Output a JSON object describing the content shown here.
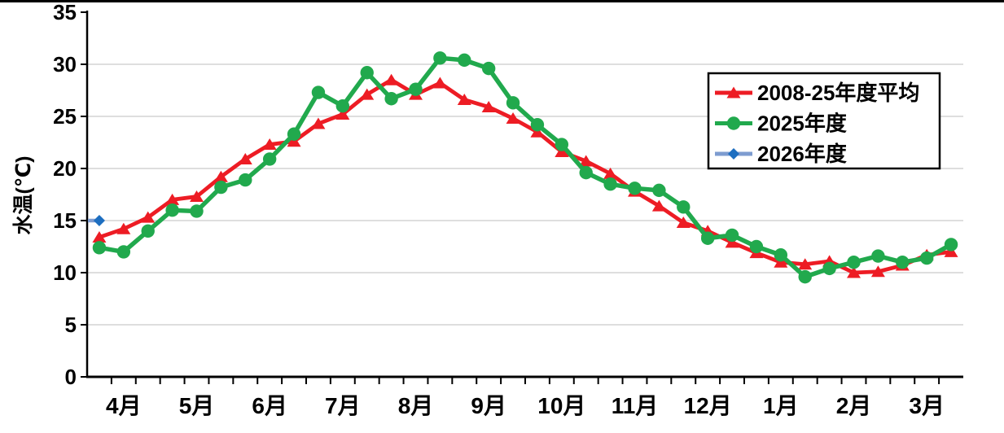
{
  "chart_data": {
    "type": "line",
    "title": "",
    "ylabel": "水温(℃)",
    "ylim": [
      0,
      35
    ],
    "yticks": [
      0,
      5,
      10,
      15,
      20,
      25,
      30,
      35
    ],
    "grid": "horizontal",
    "grid_color": "#d3d3d3",
    "axis_color": "#000000",
    "background_color": "#ffffff",
    "categories_months": [
      "4月",
      "5月",
      "6月",
      "7月",
      "8月",
      "9月",
      "10月",
      "11月",
      "12月",
      "1月",
      "2月",
      "3月"
    ],
    "points_per_month": 3,
    "x_structure": "36 points = 12 months x 3 ten-day periods; x tick marks at each period boundary",
    "legend_position": "upper right",
    "legend_border_color": "#000000",
    "series": [
      {
        "name": "2008-25年度平均",
        "color": "#ed1c24",
        "marker": "triangle",
        "values": [
          13.4,
          14.2,
          15.3,
          17.0,
          17.3,
          19.2,
          20.9,
          22.3,
          22.6,
          24.3,
          25.2,
          27.1,
          28.5,
          27.1,
          28.2,
          26.6,
          25.9,
          24.8,
          23.5,
          21.6,
          20.7,
          19.5,
          17.8,
          16.4,
          14.8,
          14.0,
          12.9,
          11.9,
          11.0,
          10.8,
          11.1,
          10.0,
          10.1,
          10.7,
          11.7,
          12.0
        ]
      },
      {
        "name": "2025年度",
        "color": "#21a94d",
        "marker": "circle",
        "values": [
          12.4,
          12.0,
          14.0,
          16.0,
          15.9,
          18.2,
          18.9,
          20.9,
          23.3,
          27.3,
          26.0,
          29.2,
          26.7,
          27.6,
          30.6,
          30.4,
          29.6,
          26.3,
          24.2,
          22.3,
          19.6,
          18.5,
          18.1,
          17.9,
          16.3,
          13.3,
          13.6,
          12.5,
          11.7,
          9.6,
          10.4,
          11.0,
          11.6,
          11.0,
          11.4,
          12.7
        ]
      },
      {
        "name": "2026年度",
        "color": "#1d6ec0",
        "line_color": "#7e9cd0",
        "marker": "diamond",
        "values": [
          15.0,
          null,
          null,
          null,
          null,
          null,
          null,
          null,
          null,
          null,
          null,
          null,
          null,
          null,
          null,
          null,
          null,
          null,
          null,
          null,
          null,
          null,
          null,
          null,
          null,
          null,
          null,
          null,
          null,
          null,
          null,
          null,
          null,
          null,
          null,
          null
        ]
      }
    ]
  }
}
